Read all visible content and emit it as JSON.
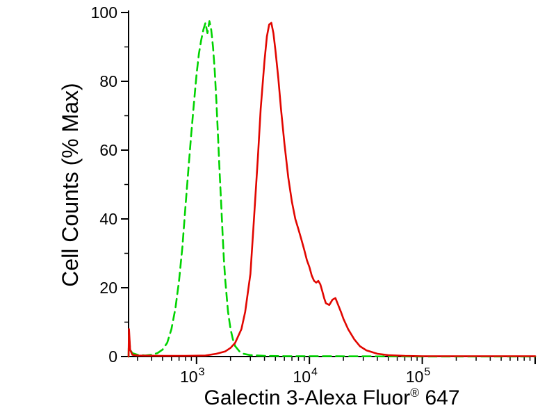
{
  "figure": {
    "background": "#ffffff"
  },
  "chart_data": {
    "type": "line",
    "title": "",
    "ylabel": "Cell Counts (% Max)",
    "xlabel": "Galectin 3-Alexa Fluor® 647",
    "xlabel_parts": {
      "prefix": "Galectin 3-Alexa Fluor",
      "registered_mark": "®",
      "suffix": " 647"
    },
    "grid": false,
    "legend": null,
    "axes": {
      "x": {
        "scale": "log",
        "min": 250,
        "max": 1000000,
        "major_ticks": [
          1000,
          10000,
          100000,
          1000000
        ],
        "labeled_ticks": [
          {
            "value": 1000,
            "base": "10",
            "exp": "3"
          },
          {
            "value": 10000,
            "base": "10",
            "exp": "4"
          },
          {
            "value": 100000,
            "base": "10",
            "exp": "5"
          }
        ]
      },
      "y": {
        "min": 0,
        "max": 100,
        "major_step": 20,
        "minor_step": 10,
        "tick_labels": [
          0,
          20,
          40,
          60,
          80,
          100
        ]
      }
    },
    "series": [
      {
        "name": "green_dashed_curve",
        "color": "#00d300",
        "style": "dashed",
        "line_width": 2.6,
        "points": [
          [
            250,
            0
          ],
          [
            252,
            6.5
          ],
          [
            258,
            2
          ],
          [
            270,
            1
          ],
          [
            300,
            0.5
          ],
          [
            350,
            0.3
          ],
          [
            400,
            0.5
          ],
          [
            450,
            1
          ],
          [
            500,
            2
          ],
          [
            550,
            4
          ],
          [
            600,
            8
          ],
          [
            650,
            14
          ],
          [
            700,
            22
          ],
          [
            750,
            32
          ],
          [
            800,
            44
          ],
          [
            850,
            55
          ],
          [
            900,
            65
          ],
          [
            950,
            74
          ],
          [
            1000,
            82
          ],
          [
            1050,
            88
          ],
          [
            1100,
            92
          ],
          [
            1150,
            95
          ],
          [
            1200,
            97
          ],
          [
            1250,
            94
          ],
          [
            1300,
            97.5
          ],
          [
            1350,
            95
          ],
          [
            1400,
            90
          ],
          [
            1450,
            83
          ],
          [
            1500,
            74
          ],
          [
            1550,
            64
          ],
          [
            1600,
            54
          ],
          [
            1650,
            45
          ],
          [
            1700,
            36
          ],
          [
            1750,
            28
          ],
          [
            1800,
            22
          ],
          [
            1900,
            13
          ],
          [
            2000,
            8
          ],
          [
            2100,
            5
          ],
          [
            2200,
            3
          ],
          [
            2400,
            1.5
          ],
          [
            2600,
            0.8
          ],
          [
            3000,
            0.4
          ],
          [
            4000,
            0.2
          ],
          [
            6000,
            0.1
          ],
          [
            10000,
            0.1
          ],
          [
            50000,
            0.05
          ],
          [
            100000,
            0
          ],
          [
            1000000,
            0
          ]
        ]
      },
      {
        "name": "red_solid_curve",
        "color": "#e10600",
        "style": "solid",
        "line_width": 2.6,
        "points": [
          [
            250,
            0
          ],
          [
            252,
            8
          ],
          [
            258,
            2
          ],
          [
            270,
            0.5
          ],
          [
            300,
            0.3
          ],
          [
            500,
            0.2
          ],
          [
            800,
            0.2
          ],
          [
            1200,
            0.3
          ],
          [
            1500,
            0.8
          ],
          [
            1800,
            1.5
          ],
          [
            2000,
            2.5
          ],
          [
            2200,
            4
          ],
          [
            2500,
            8
          ],
          [
            2700,
            13
          ],
          [
            3000,
            24
          ],
          [
            3200,
            38
          ],
          [
            3500,
            58
          ],
          [
            3700,
            72
          ],
          [
            4000,
            86
          ],
          [
            4200,
            93
          ],
          [
            4400,
            96.5
          ],
          [
            4600,
            97
          ],
          [
            4800,
            94
          ],
          [
            5000,
            89
          ],
          [
            5300,
            81
          ],
          [
            5600,
            72
          ],
          [
            6000,
            62
          ],
          [
            6500,
            52
          ],
          [
            7000,
            45
          ],
          [
            7500,
            40
          ],
          [
            8000,
            37
          ],
          [
            8500,
            34
          ],
          [
            9000,
            31
          ],
          [
            9500,
            28
          ],
          [
            10000,
            26
          ],
          [
            10500,
            23.5
          ],
          [
            11000,
            22
          ],
          [
            11500,
            21.5
          ],
          [
            12000,
            22
          ],
          [
            12500,
            21
          ],
          [
            13000,
            19
          ],
          [
            13500,
            17
          ],
          [
            14000,
            15.5
          ],
          [
            15000,
            15
          ],
          [
            16000,
            16.5
          ],
          [
            17000,
            17
          ],
          [
            18000,
            15
          ],
          [
            19000,
            13
          ],
          [
            20000,
            11
          ],
          [
            22000,
            8
          ],
          [
            25000,
            5
          ],
          [
            28000,
            3
          ],
          [
            32000,
            1.8
          ],
          [
            40000,
            0.8
          ],
          [
            50000,
            0.4
          ],
          [
            70000,
            0.2
          ],
          [
            100000,
            0.1
          ],
          [
            1000000,
            0.1
          ]
        ]
      }
    ]
  }
}
